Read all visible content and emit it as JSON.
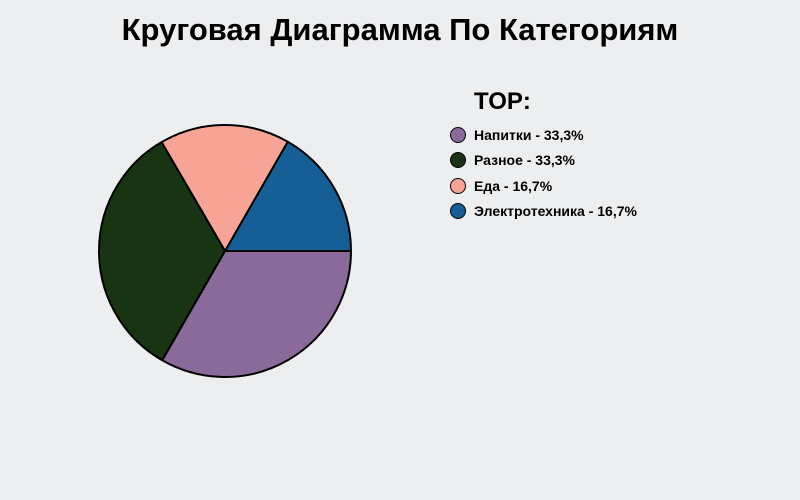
{
  "chart_data": {
    "type": "pie",
    "title": "Круговая Диаграмма По Категориям",
    "legend_title": "TOP:",
    "legend_position": "right",
    "start_angle_deg": 0,
    "direction": "counterclockwise",
    "slices": [
      {
        "name": "Электротехника",
        "value": 16.7,
        "color": "#155f96",
        "legend_label": "Электротехника - 16,7%"
      },
      {
        "name": "Еда",
        "value": 16.7,
        "color": "#f7a496",
        "legend_label": "Еда - 16,7%"
      },
      {
        "name": "Разное",
        "value": 33.3,
        "color": "#183413",
        "legend_label": "Разное - 33,3%"
      },
      {
        "name": "Напитки",
        "value": 33.3,
        "color": "#8a6a9a",
        "legend_label": "Напитки - 33,3%"
      }
    ],
    "legend_order": [
      "Напитки",
      "Разное",
      "Еда",
      "Электротехника"
    ]
  }
}
